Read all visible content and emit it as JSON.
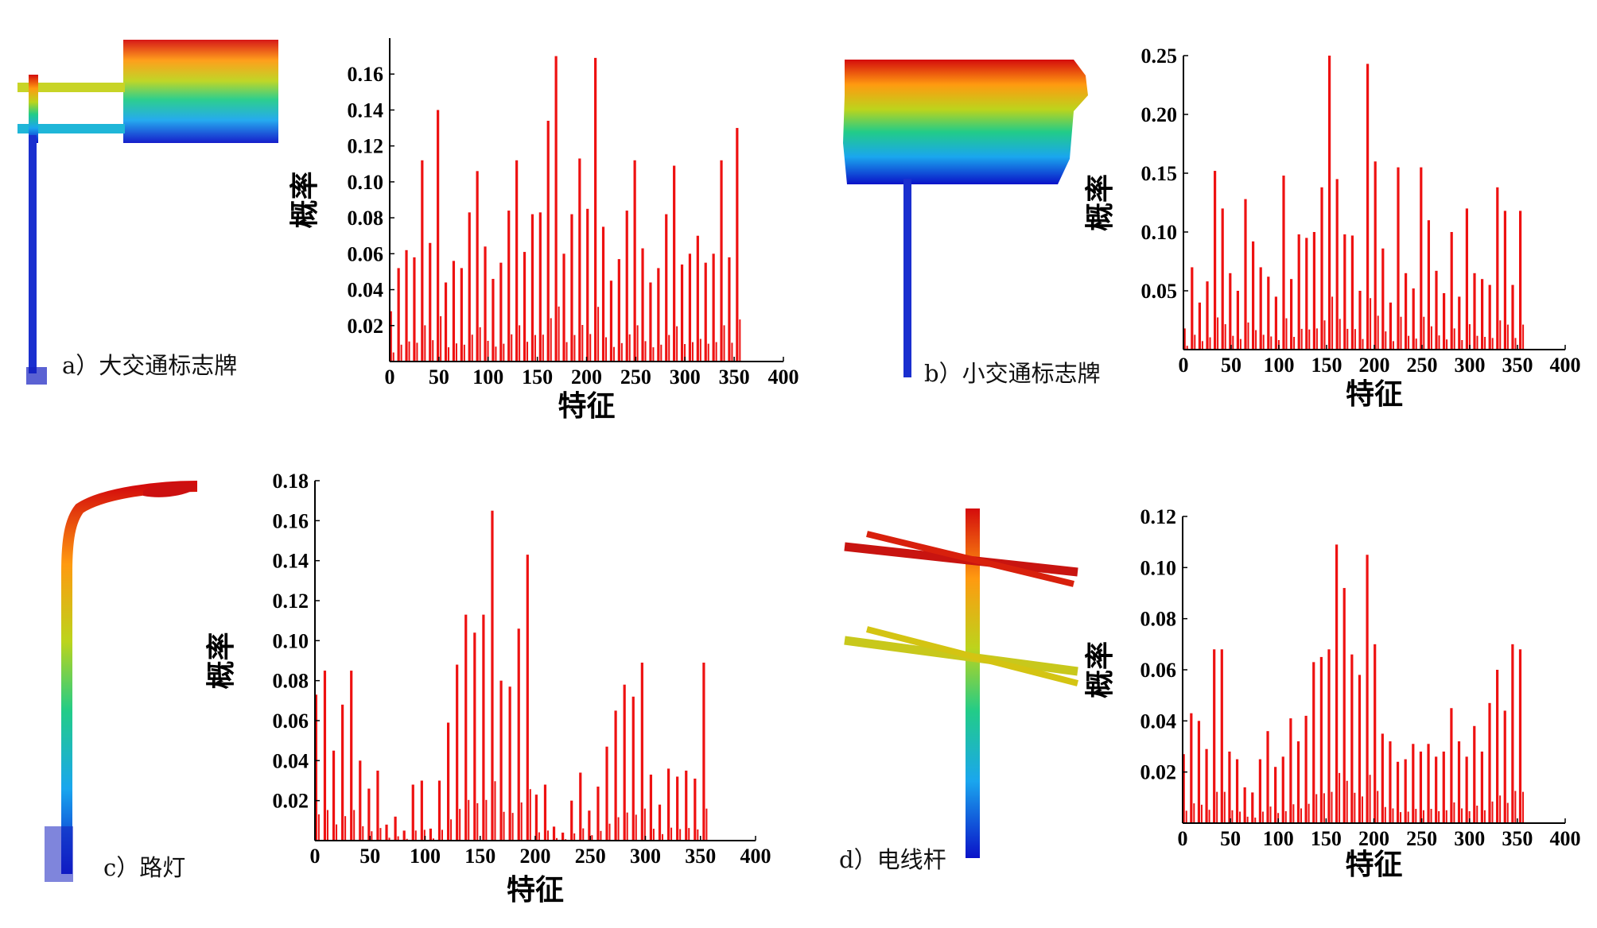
{
  "colors": {
    "bar": "#ee1111",
    "axis": "#000000",
    "scale": [
      "#0a12c8",
      "#1aa6ee",
      "#22cc88",
      "#bcd41c",
      "#ff9a10",
      "#d40c0c"
    ]
  },
  "panels": [
    {
      "id": "a",
      "caption": "a）大交通标志牌",
      "object_icon": "large-traffic-sign-point-cloud"
    },
    {
      "id": "b",
      "caption": "b）小交通标志牌",
      "object_icon": "small-traffic-sign-point-cloud"
    },
    {
      "id": "c",
      "caption": "c）路灯",
      "object_icon": "street-lamp-point-cloud"
    },
    {
      "id": "d",
      "caption": "d）电线杆",
      "object_icon": "utility-pole-point-cloud"
    }
  ],
  "chart_data": [
    {
      "type": "bar",
      "xlabel": "特征",
      "ylabel": "概率",
      "xlim": [
        0,
        400
      ],
      "ylim": [
        0,
        0.18
      ],
      "xticks": [
        "0",
        "50",
        "100",
        "150",
        "200",
        "250",
        "300",
        "350",
        "400"
      ],
      "yticks": [
        "0.02",
        "0.04",
        "0.06",
        "0.08",
        "0.10",
        "0.12",
        "0.14",
        "0.16"
      ],
      "x": [
        0,
        8,
        16,
        24,
        32,
        40,
        48,
        56,
        64,
        72,
        80,
        88,
        96,
        104,
        112,
        120,
        128,
        136,
        144,
        152,
        160,
        168,
        176,
        184,
        192,
        200,
        208,
        216,
        224,
        232,
        240,
        248,
        256,
        264,
        272,
        280,
        288,
        296,
        304,
        312,
        320,
        328,
        336,
        344,
        352
      ],
      "values": [
        0.028,
        0.052,
        0.062,
        0.058,
        0.112,
        0.066,
        0.14,
        0.044,
        0.056,
        0.052,
        0.083,
        0.106,
        0.064,
        0.046,
        0.055,
        0.084,
        0.112,
        0.061,
        0.082,
        0.083,
        0.134,
        0.17,
        0.06,
        0.082,
        0.113,
        0.085,
        0.169,
        0.075,
        0.045,
        0.057,
        0.084,
        0.112,
        0.063,
        0.044,
        0.052,
        0.082,
        0.109,
        0.054,
        0.06,
        0.07,
        0.055,
        0.06,
        0.112,
        0.058,
        0.13
      ]
    },
    {
      "type": "bar",
      "xlabel": "特征",
      "ylabel": "概率",
      "xlim": [
        0,
        400
      ],
      "ylim": [
        0,
        0.25
      ],
      "xticks": [
        "0",
        "50",
        "100",
        "150",
        "200",
        "250",
        "300",
        "350",
        "400"
      ],
      "yticks": [
        "0.05",
        "0.10",
        "0.15",
        "0.20",
        "0.25"
      ],
      "x": [
        0,
        8,
        16,
        24,
        32,
        40,
        48,
        56,
        64,
        72,
        80,
        88,
        96,
        104,
        112,
        120,
        128,
        136,
        144,
        152,
        160,
        168,
        176,
        184,
        192,
        200,
        208,
        216,
        224,
        232,
        240,
        248,
        256,
        264,
        272,
        280,
        288,
        296,
        304,
        312,
        320,
        328,
        336,
        344,
        352
      ],
      "values": [
        0.018,
        0.07,
        0.04,
        0.058,
        0.152,
        0.12,
        0.065,
        0.05,
        0.128,
        0.092,
        0.07,
        0.062,
        0.045,
        0.148,
        0.06,
        0.098,
        0.095,
        0.1,
        0.138,
        0.25,
        0.145,
        0.098,
        0.097,
        0.05,
        0.243,
        0.16,
        0.086,
        0.04,
        0.155,
        0.065,
        0.052,
        0.155,
        0.11,
        0.067,
        0.048,
        0.1,
        0.045,
        0.12,
        0.065,
        0.06,
        0.055,
        0.138,
        0.118,
        0.055,
        0.118
      ]
    },
    {
      "type": "bar",
      "xlabel": "特征",
      "ylabel": "概率",
      "xlim": [
        0,
        400
      ],
      "ylim": [
        0,
        0.18
      ],
      "xticks": [
        "0",
        "50",
        "100",
        "150",
        "200",
        "250",
        "300",
        "350",
        "400"
      ],
      "yticks": [
        "0.02",
        "0.04",
        "0.06",
        "0.08",
        "0.10",
        "0.12",
        "0.14",
        "0.16",
        "0.18"
      ],
      "x": [
        0,
        8,
        16,
        24,
        32,
        40,
        48,
        56,
        64,
        72,
        80,
        88,
        96,
        104,
        112,
        120,
        128,
        136,
        144,
        152,
        160,
        168,
        176,
        184,
        192,
        200,
        208,
        216,
        224,
        232,
        240,
        248,
        256,
        264,
        272,
        280,
        288,
        296,
        304,
        312,
        320,
        328,
        336,
        344,
        352
      ],
      "values": [
        0.073,
        0.085,
        0.045,
        0.068,
        0.085,
        0.04,
        0.026,
        0.035,
        0.008,
        0.012,
        0.005,
        0.028,
        0.03,
        0.006,
        0.03,
        0.059,
        0.088,
        0.113,
        0.104,
        0.113,
        0.165,
        0.08,
        0.077,
        0.106,
        0.143,
        0.023,
        0.028,
        0.007,
        0.004,
        0.02,
        0.034,
        0.015,
        0.027,
        0.047,
        0.065,
        0.078,
        0.072,
        0.089,
        0.033,
        0.018,
        0.036,
        0.032,
        0.035,
        0.031,
        0.089
      ]
    },
    {
      "type": "bar",
      "xlabel": "特征",
      "ylabel": "概率",
      "xlim": [
        0,
        400
      ],
      "ylim": [
        0,
        0.12
      ],
      "xticks": [
        "0",
        "50",
        "100",
        "150",
        "200",
        "250",
        "300",
        "350",
        "400"
      ],
      "yticks": [
        "0.02",
        "0.04",
        "0.06",
        "0.08",
        "0.10",
        "0.12"
      ],
      "x": [
        0,
        8,
        16,
        24,
        32,
        40,
        48,
        56,
        64,
        72,
        80,
        88,
        96,
        104,
        112,
        120,
        128,
        136,
        144,
        152,
        160,
        168,
        176,
        184,
        192,
        200,
        208,
        216,
        224,
        232,
        240,
        248,
        256,
        264,
        272,
        280,
        288,
        296,
        304,
        312,
        320,
        328,
        336,
        344,
        352
      ],
      "values": [
        0.027,
        0.043,
        0.04,
        0.029,
        0.068,
        0.068,
        0.028,
        0.025,
        0.014,
        0.012,
        0.025,
        0.036,
        0.022,
        0.026,
        0.041,
        0.032,
        0.042,
        0.063,
        0.065,
        0.068,
        0.109,
        0.092,
        0.066,
        0.058,
        0.105,
        0.07,
        0.035,
        0.032,
        0.024,
        0.025,
        0.031,
        0.028,
        0.031,
        0.026,
        0.028,
        0.045,
        0.032,
        0.026,
        0.038,
        0.028,
        0.047,
        0.06,
        0.044,
        0.07,
        0.068
      ]
    }
  ]
}
